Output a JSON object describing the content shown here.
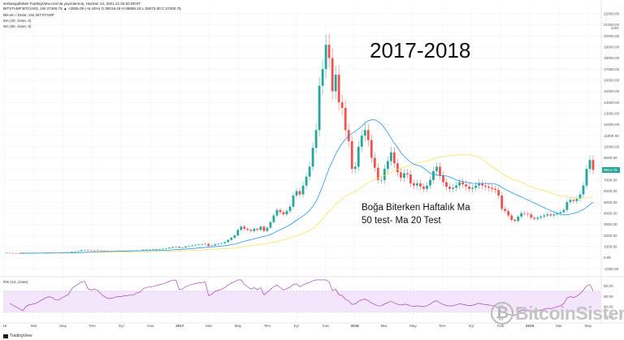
{
  "header": {
    "line1": "serbaegulfelide TradingView.com'da yayınlanmış, Haziran 13, 2021 21:32:52 EEST",
    "line2": "BITSTAMP:BTCUSD, 1W  37400.75 ▲ +2925.09 (+5.43%) O:35019.49 H:38996.24 L:35072.00 C:37400.75",
    "symbol": "Bitcoin / Dolar, 1W, BITSTAMP",
    "ma20_label": "MA (20, close, 0)",
    "ma50_label": "MA (50, close, 0)"
  },
  "title_overlay": "2017-2018",
  "note_line1": "Boğa Biterken Haftalık Ma",
  "note_line2": "50 test- Ma 20 Test",
  "rsi_label": "RSI (14, close)",
  "tradingview_label": "TradingView",
  "watermark_text": "BitcoinSistemi",
  "watermark_coin": "₿",
  "currency_label": "USD",
  "price_badge": "8914.78",
  "colors": {
    "up": "#26a69a",
    "down": "#ef5350",
    "ma20": "#2196f3",
    "ma50": "#f9e45b",
    "rsi": "#9c27b0",
    "rsi_band": "#f3e5fb",
    "grid": "#eef0f3"
  },
  "chart_data": {
    "type": "candlestick",
    "title": "Bitcoin / Dolar, 1W, BITSTAMP",
    "x_ticks": [
      "16",
      "Mar",
      "May",
      "Tem",
      "Eyl",
      "Kas",
      "2017",
      "Mar",
      "May",
      "Tem",
      "Eyl",
      "Kas",
      "2018",
      "Mar",
      "May",
      "Tem",
      "Eyl",
      "Kas",
      "2019",
      "Mar",
      "May"
    ],
    "y_ticks": [
      -1000,
      0,
      1000,
      2000,
      3000,
      4000,
      5000,
      6000,
      7000,
      8000,
      9000,
      10000,
      11000,
      12000,
      13000,
      14000,
      15000,
      16000,
      17000,
      18000,
      19000,
      20000,
      21000,
      22000
    ],
    "y_tick_labels": [
      "-1000.00",
      "0.00",
      "1000.00",
      "2000.00",
      "3000.00",
      "4000.00",
      "5000.00",
      "6000.00",
      "7000.00",
      "8000.00",
      "9000.00",
      "10000.00",
      "11000.00",
      "12000.00",
      "13000.00",
      "14000.00",
      "15000.00",
      "16000.00",
      "17000.00",
      "18000.00",
      "19000.00",
      "20000.00",
      "21000.00",
      "22000.00"
    ],
    "ylim": [
      -1500,
      22500
    ],
    "price_close_series": [
      430,
      420,
      410,
      400,
      390,
      380,
      400,
      410,
      415,
      420,
      430,
      440,
      450,
      455,
      450,
      440,
      440,
      450,
      460,
      470,
      520,
      560,
      600,
      680,
      700,
      650,
      640,
      660,
      650,
      620,
      600,
      580,
      580,
      590,
      600,
      600,
      610,
      610,
      620,
      620,
      640,
      650,
      700,
      720,
      730,
      740,
      760,
      780,
      800,
      830,
      900,
      960,
      980,
      900,
      920,
      1000,
      1050,
      1100,
      1150,
      1180,
      1200,
      1240,
      1050,
      1100,
      1200,
      1250,
      1300,
      1400,
      1600,
      1800,
      2000,
      2500,
      2800,
      2600,
      2500,
      2400,
      2600,
      2500,
      2800,
      2400,
      2700,
      3200,
      3800,
      4300,
      4100,
      3900,
      4200,
      4600,
      5600,
      6000,
      5700,
      6500,
      7300,
      8200,
      9900,
      11500,
      15500,
      17000,
      19200,
      18000,
      15000,
      16500,
      14000,
      13500,
      11500,
      10500,
      8000,
      8200,
      10000,
      11000,
      11500,
      10600,
      9000,
      8100,
      7000,
      7000,
      8000,
      8700,
      9500,
      8500,
      7700,
      7200,
      7600,
      7500,
      6700,
      6500,
      6700,
      6400,
      6200,
      6500,
      7000,
      7800,
      8200,
      7400,
      6800,
      6400,
      6200,
      6300,
      6500,
      6800,
      6600,
      6400,
      6200,
      6300,
      6500,
      6700,
      6500,
      6400,
      6300,
      6200,
      6100,
      5600,
      4400,
      4200,
      3800,
      3400,
      3300,
      3700,
      4000,
      3950,
      3900,
      3600,
      3500,
      3600,
      3700,
      3800,
      3900,
      3800,
      3900,
      4000,
      4100,
      4300,
      5000,
      5200,
      5100,
      5300,
      5700,
      6500,
      8000,
      8800,
      7900
    ],
    "rsi": {
      "title": "RSI (14, close)",
      "y_ticks": [
        20,
        40,
        60,
        80
      ],
      "y_tick_labels": [
        "20.00",
        "40.00",
        "60.00",
        "80.00"
      ],
      "ylim": [
        10,
        95
      ],
      "band": [
        30,
        70
      ]
    }
  }
}
